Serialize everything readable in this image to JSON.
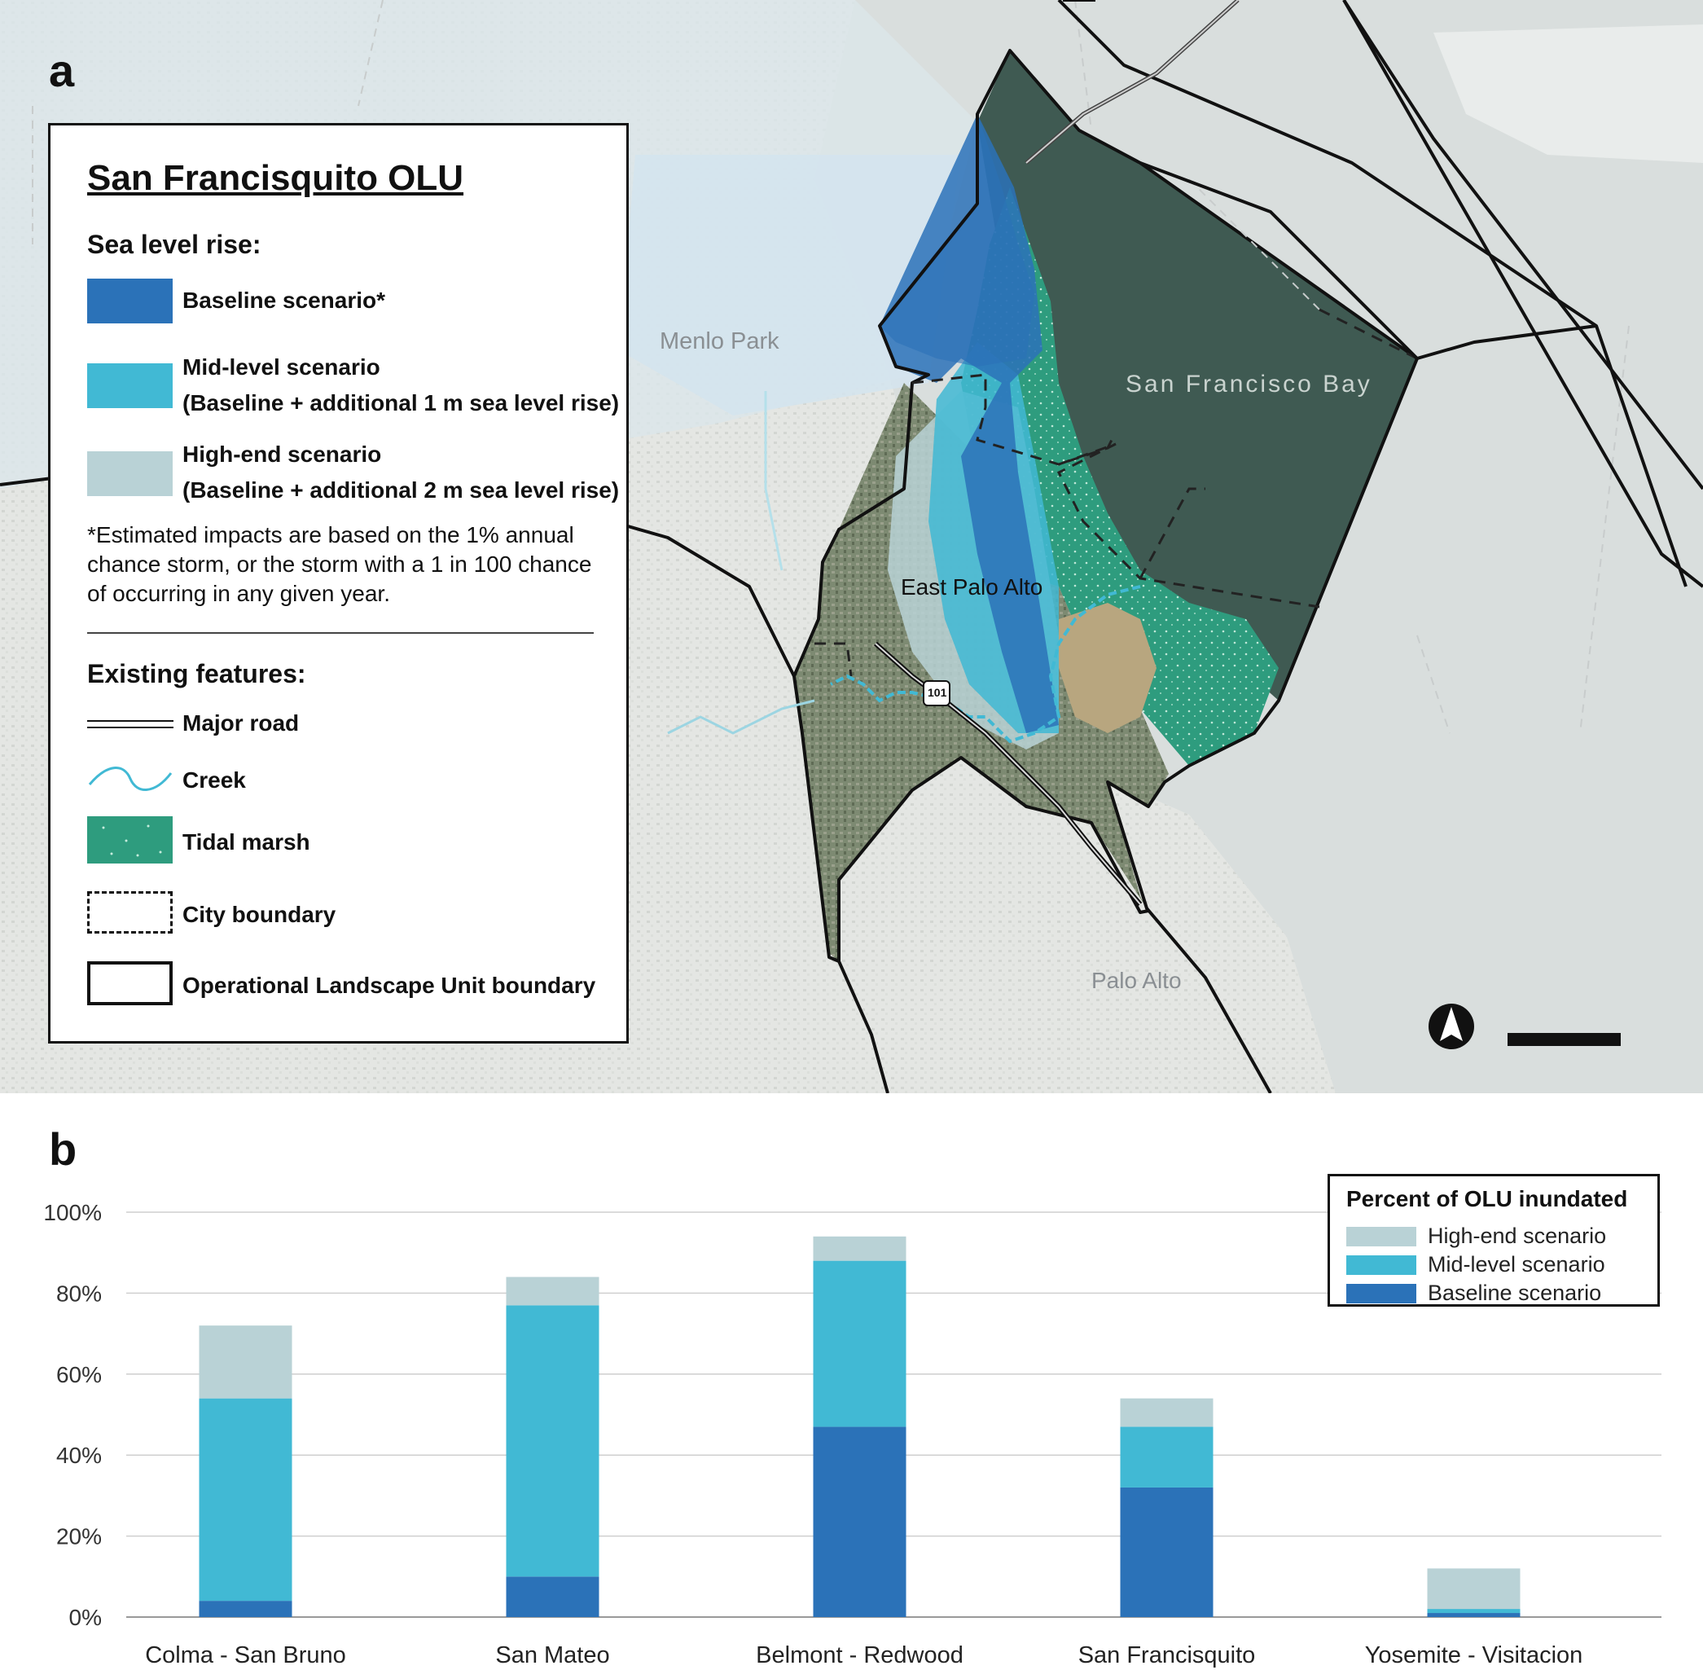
{
  "panel_a": {
    "letter": "a",
    "legend": {
      "title": "San Francisquito OLU",
      "sea_level_heading": "Sea level rise:",
      "baseline_label": "Baseline scenario*",
      "mid_label_line1": "Mid-level scenario",
      "mid_label_line2": "(Baseline + additional 1 m sea level rise)",
      "high_label_line1": "High-end scenario",
      "high_label_line2": "(Baseline + additional 2 m sea level rise)",
      "note": "*Estimated impacts are based on the 1% annual chance storm, or the storm with a 1 in 100 chance of occurring in any given year.",
      "features_heading": "Existing features:",
      "major_road_label": "Major road",
      "creek_label": "Creek",
      "tidal_marsh_label": "Tidal marsh",
      "city_boundary_label": "City boundary",
      "olu_boundary_label": "Operational Landscape Unit boundary"
    },
    "places": {
      "menlo_park": "Menlo Park",
      "san_francisco_bay": "San Francisco Bay",
      "east_palo_alto": "East Palo Alto",
      "palo_alto": "Palo Alto",
      "highway": "101"
    },
    "icons": {
      "north_arrow": "north-arrow-icon",
      "scale_bar": "scale-bar"
    },
    "colors": {
      "baseline": "#2b72b8",
      "mid": "#41b9d4",
      "high": "#b9d2d6",
      "tidal_marsh": "#2e9c7e",
      "bay": "#3f5a52"
    }
  },
  "panel_b": {
    "letter": "b",
    "legend_title": "Percent of OLU inundated",
    "legend_items": [
      {
        "label": "High-end scenario",
        "color": "#b9d2d6"
      },
      {
        "label": "Mid-level scenario",
        "color": "#41b9d4"
      },
      {
        "label": "Baseline scenario",
        "color": "#2b72b8"
      }
    ]
  },
  "chart_data": {
    "type": "bar",
    "stacked": true,
    "title": "Percent of OLU inundated",
    "xlabel": "",
    "ylabel": "",
    "ylim": [
      0,
      100
    ],
    "y_ticks": [
      "0%",
      "20%",
      "40%",
      "60%",
      "80%",
      "100%"
    ],
    "y_tick_values": [
      0,
      20,
      40,
      60,
      80,
      100
    ],
    "categories": [
      "Colma - San Bruno",
      "San Mateo",
      "Belmont - Redwood",
      "San Francisquito",
      "Yosemite - Visitacion"
    ],
    "series": [
      {
        "name": "Baseline scenario",
        "color": "#2b72b8",
        "values": [
          4,
          10,
          47,
          32,
          1
        ]
      },
      {
        "name": "Mid-level scenario",
        "color": "#41b9d4",
        "values": [
          50,
          67,
          41,
          15,
          1
        ]
      },
      {
        "name": "High-end scenario",
        "color": "#b9d2d6",
        "values": [
          18,
          7,
          6,
          7,
          10
        ]
      }
    ],
    "grid": true,
    "legend_position": "top-right"
  }
}
